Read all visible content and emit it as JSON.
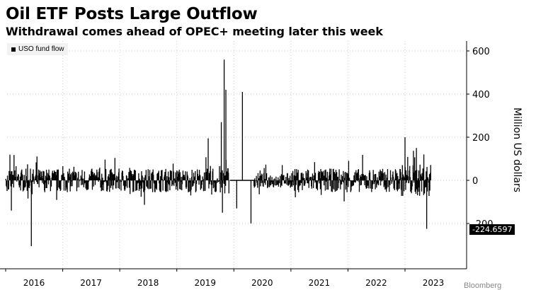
{
  "header": {
    "title": "Oil ETF Posts Large Outflow",
    "subtitle": "Withdrawal comes ahead of OPEC+ meeting later this week"
  },
  "legend": {
    "label": "USO fund flow"
  },
  "last_value_label": "-224.6597",
  "credit": "Bloomberg",
  "chart_data": {
    "type": "bar",
    "title": "Oil ETF Posts Large Outflow",
    "subtitle": "Withdrawal comes ahead of OPEC+ meeting later this week",
    "ylabel": "Million US dollars",
    "ylim": [
      -400,
      650
    ],
    "y_ticks": [
      600,
      400,
      200,
      0,
      -200
    ],
    "y_tick_labels": [
      "600",
      "400",
      "200",
      "0",
      "-200"
    ],
    "x_tick_labels": [
      "2016",
      "2017",
      "2018",
      "2019",
      "2020",
      "2021",
      "2022",
      "2023"
    ],
    "grid": true,
    "legend_position": "top-left",
    "series": [
      {
        "name": "USO fund flow",
        "color": "#000000",
        "notable_values": {
          "peak_2020": 560,
          "spike_2020_late": 410,
          "min_2016": -305,
          "min_2020": -200,
          "last": -224.6597
        }
      }
    ]
  }
}
